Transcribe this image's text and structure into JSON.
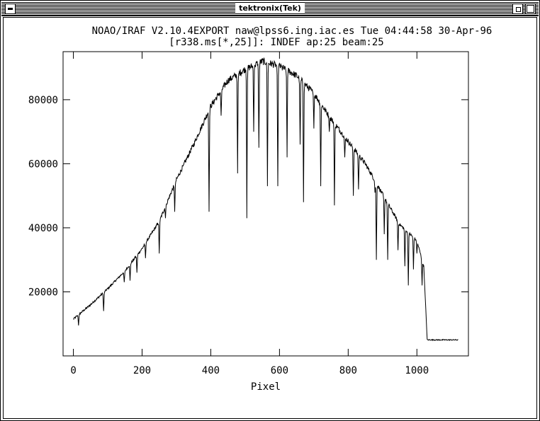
{
  "window": {
    "title": "tektronix(Tek)"
  },
  "chart_data": {
    "type": "line",
    "title": "NOAO/IRAF V2.10.4EXPORT naw@lpss6.ing.iac.es Tue 04:44:58 30-Apr-96",
    "subtitle": "[r338.ms[*,25]]:  INDEF ap:25 beam:25",
    "xlabel": "Pixel",
    "ylabel": "",
    "xlim": [
      -30,
      1150
    ],
    "ylim": [
      0,
      95000
    ],
    "xticks": [
      0,
      200,
      400,
      600,
      800,
      1000
    ],
    "yticks": [
      20000,
      40000,
      60000,
      80000
    ],
    "xtick_labels": [
      "0",
      "200",
      "400",
      "600",
      "800",
      "1000"
    ],
    "ytick_labels": [
      "20000",
      "40000",
      "60000",
      "80000"
    ],
    "grid": false,
    "continuum": [
      [
        0,
        11500
      ],
      [
        50,
        16000
      ],
      [
        100,
        21000
      ],
      [
        150,
        26500
      ],
      [
        200,
        33500
      ],
      [
        250,
        42000
      ],
      [
        300,
        55000
      ],
      [
        350,
        66000
      ],
      [
        400,
        78000
      ],
      [
        450,
        86000
      ],
      [
        500,
        89500
      ],
      [
        550,
        92000
      ],
      [
        600,
        90500
      ],
      [
        650,
        87500
      ],
      [
        700,
        82000
      ],
      [
        750,
        74000
      ],
      [
        800,
        67000
      ],
      [
        850,
        60000
      ],
      [
        900,
        50500
      ],
      [
        950,
        41000
      ],
      [
        1000,
        36000
      ],
      [
        1020,
        28000
      ],
      [
        1030,
        5000
      ],
      [
        1120,
        5000
      ]
    ],
    "absorption_lines": [
      [
        15,
        9500
      ],
      [
        88,
        14000
      ],
      [
        148,
        23000
      ],
      [
        165,
        23500
      ],
      [
        185,
        26000
      ],
      [
        210,
        30500
      ],
      [
        250,
        32000
      ],
      [
        268,
        43000
      ],
      [
        295,
        45000
      ],
      [
        318,
        62000
      ],
      [
        395,
        45000
      ],
      [
        430,
        75000
      ],
      [
        478,
        57000
      ],
      [
        505,
        43000
      ],
      [
        525,
        70000
      ],
      [
        540,
        65000
      ],
      [
        565,
        53000
      ],
      [
        595,
        53000
      ],
      [
        622,
        62000
      ],
      [
        660,
        66000
      ],
      [
        670,
        48000
      ],
      [
        700,
        71000
      ],
      [
        720,
        53000
      ],
      [
        745,
        70000
      ],
      [
        760,
        47000
      ],
      [
        790,
        62000
      ],
      [
        815,
        50000
      ],
      [
        830,
        52000
      ],
      [
        878,
        51000
      ],
      [
        882,
        30000
      ],
      [
        905,
        38000
      ],
      [
        915,
        30000
      ],
      [
        945,
        33000
      ],
      [
        965,
        28000
      ],
      [
        975,
        22000
      ],
      [
        990,
        27000
      ],
      [
        1000,
        32000
      ],
      [
        1015,
        22000
      ]
    ]
  }
}
